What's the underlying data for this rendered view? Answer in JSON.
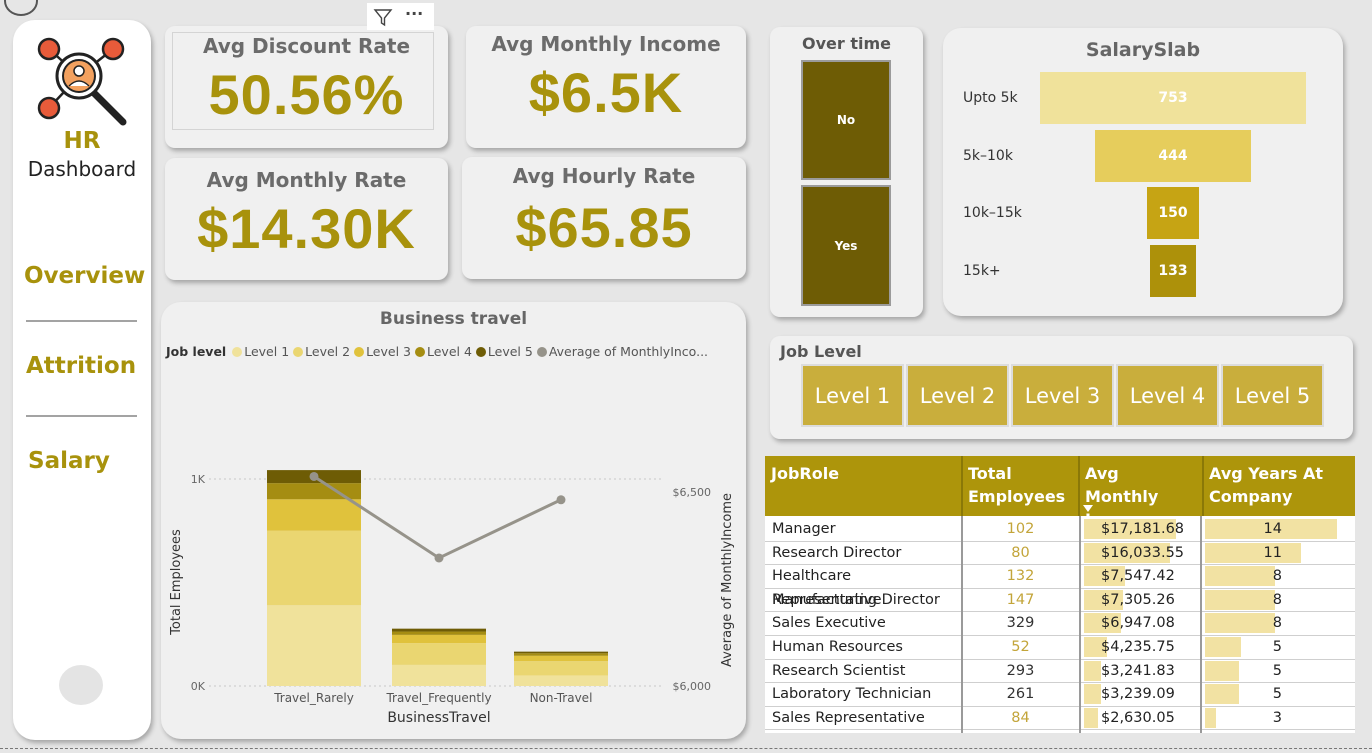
{
  "sidebar": {
    "title_hr": "HR",
    "title_dashboard": "Dashboard",
    "logo_icon": "hr-network-magnifier-icon",
    "nav": [
      "Overview",
      "Attrition",
      "Salary"
    ]
  },
  "kpis": {
    "discount": {
      "label": "Avg Discount Rate",
      "value": "50.56%"
    },
    "income": {
      "label": "Avg Monthly Income",
      "value": "$6.5K"
    },
    "monthly_rate": {
      "label": "Avg Monthly Rate",
      "value": "$14.30K"
    },
    "hourly_rate": {
      "label": "Avg Hourly Rate",
      "value": "$65.85"
    }
  },
  "visual_header": {
    "filter_icon": "filter-icon",
    "more_icon": "more-options-icon",
    "more_glyph": "···"
  },
  "overtime": {
    "title": "Over time",
    "options": [
      "No",
      "Yes"
    ]
  },
  "salary_slab": {
    "title": "SalarySlab",
    "items": [
      {
        "label": "Upto 5k",
        "value": 753,
        "color": "#f0e29b"
      },
      {
        "label": "5k–10k",
        "value": 444,
        "color": "#e6cd5c"
      },
      {
        "label": "10k–15k",
        "value": 150,
        "color": "#c6a414"
      },
      {
        "label": "15k+",
        "value": 133,
        "color": "#ad910a"
      }
    ]
  },
  "job_level_slicer": {
    "title": "Job Level",
    "levels": [
      "Level 1",
      "Level 2",
      "Level 3",
      "Level 4",
      "Level 5"
    ]
  },
  "business_travel": {
    "title": "Business travel",
    "legend_title": "Job level",
    "legend": [
      {
        "name": "Level 1",
        "color": "#f0e29b"
      },
      {
        "name": "Level 2",
        "color": "#ead671"
      },
      {
        "name": "Level 3",
        "color": "#e0c23c"
      },
      {
        "name": "Level 4",
        "color": "#a58d12"
      },
      {
        "name": "Level 5",
        "color": "#6e5c05"
      },
      {
        "name": "Average of MonthlyInco...",
        "color": "#96938a"
      }
    ]
  },
  "chart_data": {
    "type": "bar",
    "title": "Business travel",
    "xlabel": "BusinessTravel",
    "ylabel": "Total Employees",
    "y2label": "Average of MonthlyIncome",
    "categories": [
      "Travel_Rarely",
      "Travel_Frequently",
      "Non-Travel"
    ],
    "stacked": true,
    "series": [
      {
        "name": "Level 1",
        "values": [
          390,
          102,
          51
        ]
      },
      {
        "name": "Level 2",
        "values": [
          360,
          105,
          69
        ]
      },
      {
        "name": "Level 3",
        "values": [
          152,
          40,
          26
        ]
      },
      {
        "name": "Level 4",
        "values": [
          78,
          16,
          12
        ]
      },
      {
        "name": "Level 5",
        "values": [
          63,
          14,
          8
        ]
      }
    ],
    "line": {
      "name": "Average of MonthlyIncome",
      "values": [
        6540,
        6330,
        6480
      ]
    },
    "y_ticks": [
      "0K",
      "1K"
    ],
    "y2_ticks": [
      "$6,000",
      "$6,500"
    ],
    "ylim": [
      0,
      1150
    ],
    "y2lim": [
      6000,
      6600
    ]
  },
  "table": {
    "headers": [
      "JobRole",
      "Total Employees",
      "Avg Monthly Income",
      "Avg Years At Company"
    ],
    "sort_icon": "sort-descending-icon",
    "rows": [
      {
        "role": "Manager",
        "employees": "102",
        "income": "$17,181.68",
        "income_pct": 0.79,
        "years": "14",
        "years_pct": 0.98
      },
      {
        "role": "Research Director",
        "employees": "80",
        "income": "$16,033.55",
        "income_pct": 0.74,
        "years": "11",
        "years_pct": 0.71
      },
      {
        "role": "Healthcare Representative",
        "employees": "132",
        "income": "$7,547.42",
        "income_pct": 0.35,
        "years": "8",
        "years_pct": 0.52
      },
      {
        "role": "Manufacturing Director",
        "employees": "147",
        "income": "$7,305.26",
        "income_pct": 0.34,
        "years": "8",
        "years_pct": 0.52
      },
      {
        "role": "Sales Executive",
        "employees": "329",
        "income": "$6,947.08",
        "income_pct": 0.32,
        "years": "8",
        "years_pct": 0.52
      },
      {
        "role": "Human Resources",
        "employees": "52",
        "income": "$4,235.75",
        "income_pct": 0.2,
        "years": "5",
        "years_pct": 0.27
      },
      {
        "role": "Research Scientist",
        "employees": "293",
        "income": "$3,241.83",
        "income_pct": 0.15,
        "years": "5",
        "years_pct": 0.25
      },
      {
        "role": "Laboratory Technician",
        "employees": "261",
        "income": "$3,239.09",
        "income_pct": 0.15,
        "years": "5",
        "years_pct": 0.25
      },
      {
        "role": "Sales Representative",
        "employees": "84",
        "income": "$2,630.05",
        "income_pct": 0.12,
        "years": "3",
        "years_pct": 0.08
      }
    ],
    "employee_colors": {
      "gold": "#c3a53a",
      "dark": "#333333"
    }
  },
  "colors": {
    "accent": "#a8920c",
    "header_gold": "#ad950b",
    "dark_olive": "#6e5c05"
  }
}
